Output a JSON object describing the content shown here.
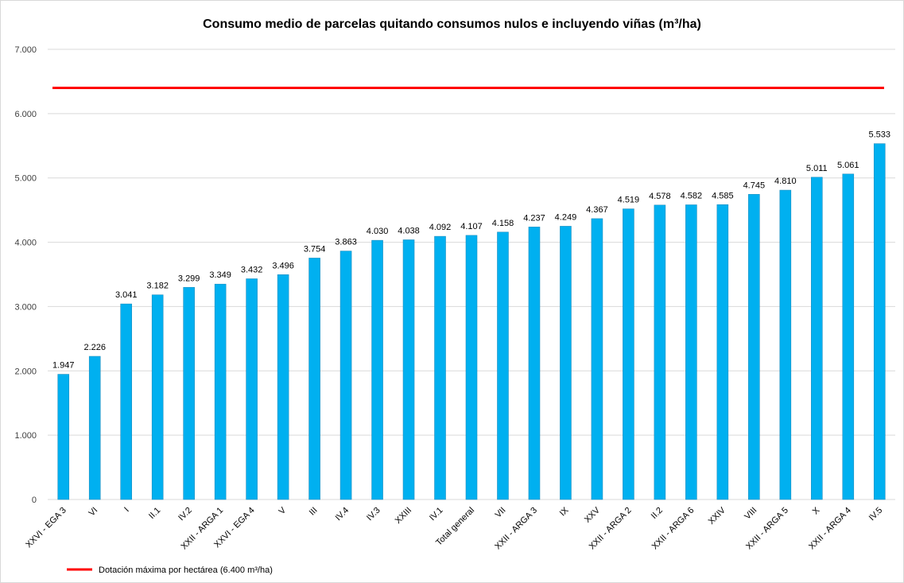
{
  "chart_data": {
    "type": "bar",
    "title": "Consumo medio de parcelas quitando consumos nulos e incluyendo viñas (m³/ha)",
    "xlabel": "",
    "ylabel": "",
    "ylim": [
      0,
      7000
    ],
    "yticks": [
      0,
      1000,
      2000,
      3000,
      4000,
      5000,
      6000,
      7000
    ],
    "ytick_labels": [
      "0",
      "1.000",
      "2.000",
      "3.000",
      "4.000",
      "5.000",
      "6.000",
      "7.000"
    ],
    "grid": true,
    "bar_color": "#00B0F0",
    "categories": [
      "XXVI - EGA 3",
      "VI",
      "I",
      "II.1",
      "IV.2",
      "XXII - ARGA 1",
      "XXVI - EGA 4",
      "V",
      "III",
      "IV.4",
      "IV.3",
      "XXIII",
      "IV.1",
      "Total general",
      "VII",
      "XXII - ARGA 3",
      "IX",
      "XXV",
      "XXII - ARGA 2",
      "II.2",
      "XXII - ARGA 6",
      "XXIV",
      "VIII",
      "XXII - ARGA 5",
      "X",
      "XXII - ARGA 4",
      "IV.5"
    ],
    "values": [
      1947,
      2226,
      3041,
      3182,
      3299,
      3349,
      3432,
      3496,
      3754,
      3863,
      4030,
      4038,
      4092,
      4107,
      4158,
      4237,
      4249,
      4367,
      4519,
      4578,
      4582,
      4585,
      4745,
      4810,
      5011,
      5061,
      5533
    ],
    "data_labels": [
      "1.947",
      "2.226",
      "3.041",
      "3.182",
      "3.299",
      "3.349",
      "3.432",
      "3.496",
      "3.754",
      "3.863",
      "4.030",
      "4.038",
      "4.092",
      "4.107",
      "4.158",
      "4.237",
      "4.249",
      "4.367",
      "4.519",
      "4.578",
      "4.582",
      "4.585",
      "4.745",
      "4.810",
      "5.011",
      "5.061",
      "5.533"
    ],
    "reference_line": {
      "value": 6400,
      "color": "#FF0000",
      "label": "Dotación máxima por hectárea (6.400 m³/ha)"
    },
    "legend_position": "bottom-left"
  }
}
